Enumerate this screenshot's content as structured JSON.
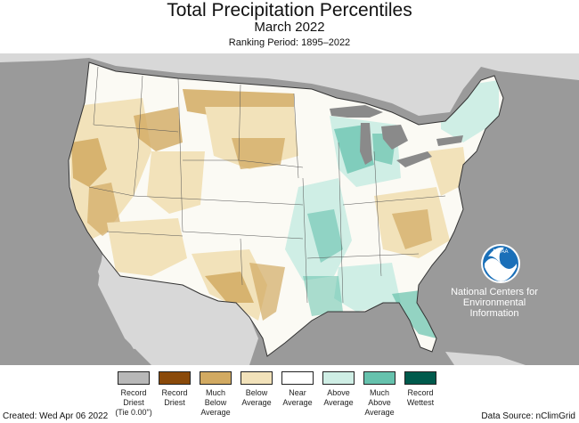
{
  "header": {
    "title": "Total Precipitation Percentiles",
    "subtitle": "March 2022",
    "ranking": "Ranking Period: 1895–2022"
  },
  "logo": {
    "name": "NOAA",
    "text": "National Centers for\nEnvironmental\nInformation"
  },
  "legend": {
    "items": [
      {
        "label": "Record\nDriest\n(Tie 0.00\")",
        "color": "#b8b8b8"
      },
      {
        "label": "Record\nDriest",
        "color": "#8a4a0a"
      },
      {
        "label": "Much\nBelow\nAverage",
        "color": "#d2aa62"
      },
      {
        "label": "Below\nAverage",
        "color": "#f2e2ba"
      },
      {
        "label": "Near\nAverage",
        "color": "#ffffff"
      },
      {
        "label": "Above\nAverage",
        "color": "#cfeee5"
      },
      {
        "label": "Much\nAbove\nAverage",
        "color": "#66c2ad"
      },
      {
        "label": "Record\nWettest",
        "color": "#005a4c"
      }
    ]
  },
  "footer": {
    "created": "Created: Wed Apr 06 2022",
    "source": "Data Source: nClimGrid"
  },
  "colors": {
    "background_gray": "#9a9a9a",
    "land_gray": "#d8d8d8",
    "lakes": "#8a8a8a",
    "noaa_blue": "#1a6fb8"
  }
}
